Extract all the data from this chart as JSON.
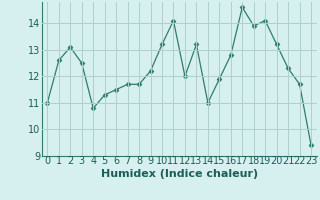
{
  "x": [
    0,
    1,
    2,
    3,
    4,
    5,
    6,
    7,
    8,
    9,
    10,
    11,
    12,
    13,
    14,
    15,
    16,
    17,
    18,
    19,
    20,
    21,
    22,
    23
  ],
  "y": [
    11.0,
    12.6,
    13.1,
    12.5,
    10.8,
    11.3,
    11.5,
    11.7,
    11.7,
    12.2,
    13.2,
    14.1,
    12.0,
    13.2,
    11.0,
    11.9,
    12.8,
    14.6,
    13.9,
    14.1,
    13.2,
    12.3,
    11.7,
    9.4
  ],
  "line_color": "#2E7D6B",
  "marker": "D",
  "marker_size": 2.5,
  "bg_color": "#D6F0EF",
  "grid_color": "#AECFCE",
  "xlabel": "Humidex (Indice chaleur)",
  "xlabel_fontsize": 8,
  "tick_fontsize": 7,
  "ylim": [
    9,
    14.8
  ],
  "yticks": [
    9,
    10,
    11,
    12,
    13,
    14
  ],
  "xticks": [
    0,
    1,
    2,
    3,
    4,
    5,
    6,
    7,
    8,
    9,
    10,
    11,
    12,
    13,
    14,
    15,
    16,
    17,
    18,
    19,
    20,
    21,
    22,
    23
  ]
}
